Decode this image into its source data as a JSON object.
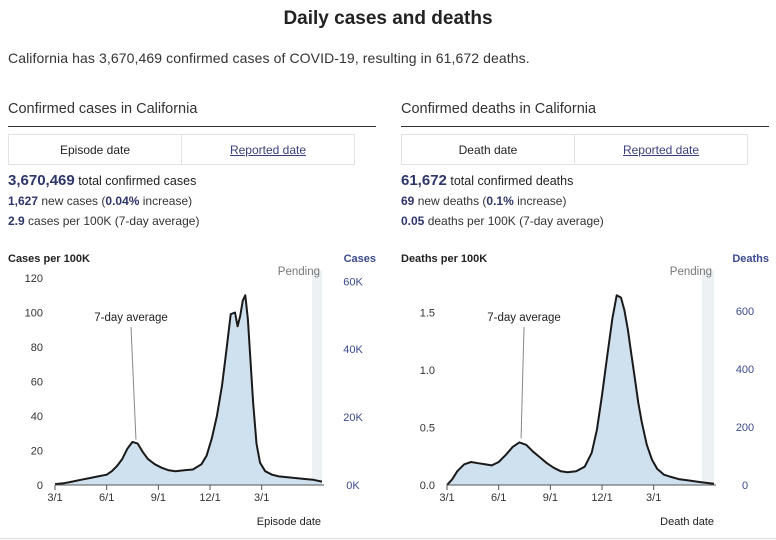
{
  "header": {
    "title": "Daily cases and deaths",
    "summary": "California has 3,670,469 confirmed cases of COVID-19, resulting in 61,672 deaths."
  },
  "panels": {
    "cases": {
      "title": "Confirmed cases in California",
      "tab_active": "Episode date",
      "tab_link": "Reported date",
      "total_value": "3,670,469",
      "total_label": " total confirmed cases",
      "new_value": "1,627",
      "new_label": " new cases (",
      "new_pct": "0.04%",
      "new_tail": " increase)",
      "rate_value": "2.9",
      "rate_label": " cases per 100K (7-day average)"
    },
    "deaths": {
      "title": "Confirmed deaths in California",
      "tab_active": "Death date",
      "tab_link": "Reported date",
      "total_value": "61,672",
      "total_label": " total confirmed deaths",
      "new_value": "69",
      "new_label": " new deaths (",
      "new_pct": "0.1%",
      "new_tail": " increase)",
      "rate_value": "0.05",
      "rate_label": " deaths per 100K (7-day average)"
    }
  },
  "colors": {
    "line": "#1a1a1a",
    "area": "#cfe0ee",
    "axis_right": "#3b4a8c",
    "pending": "#eef1f4"
  },
  "chart_data": [
    {
      "type": "area",
      "ylabel_left": "Cases per 100K",
      "ylabel_right": "Cases",
      "xlabel": "Episode date",
      "pending_label": "Pending",
      "annotation": "7-day average",
      "ylim": [
        0,
        120
      ],
      "yticks_left": [
        0,
        20,
        40,
        60,
        80,
        100,
        120
      ],
      "yticks_right_labels": [
        "0K",
        "20K",
        "40K",
        "60K"
      ],
      "yticks_right_values": [
        0,
        20000,
        40000,
        60000
      ],
      "right_per_left": 508,
      "x_ticks": [
        "3/1",
        "6/1",
        "9/1",
        "12/1",
        "3/1"
      ],
      "x_tick_months": [
        0,
        3,
        6,
        9,
        12
      ],
      "x_range_months": [
        0,
        15.5
      ],
      "series": [
        {
          "months": [
            0,
            0.5,
            1.0,
            1.5,
            2.0,
            2.5,
            3.0,
            3.3,
            3.6,
            3.9,
            4.2,
            4.5,
            4.8,
            5.1,
            5.4,
            5.8,
            6.2,
            6.6,
            7.0,
            7.5,
            8.0,
            8.5,
            8.8,
            9.1,
            9.4,
            9.7,
            9.95,
            10.2,
            10.45,
            10.6,
            10.75,
            10.9,
            11.05,
            11.2,
            11.35,
            11.5,
            11.7,
            11.9,
            12.2,
            12.6,
            13.0,
            13.5,
            14.0,
            14.5,
            15.0,
            15.5
          ],
          "values": [
            0.5,
            1,
            2,
            3,
            4,
            5,
            6,
            8,
            11,
            15,
            21,
            25,
            24,
            19,
            15,
            12,
            10,
            8.5,
            8,
            8.5,
            9,
            12,
            17,
            27,
            40,
            58,
            78,
            99,
            100,
            92,
            98,
            107,
            110,
            96,
            72,
            48,
            24,
            13,
            8,
            6,
            5,
            4.5,
            4,
            3.5,
            3,
            2
          ]
        }
      ]
    },
    {
      "type": "area",
      "ylabel_left": "Deaths per 100K",
      "ylabel_right": "Deaths",
      "xlabel": "Death date",
      "pending_label": "Pending",
      "annotation": "7-day average",
      "ylim": [
        0,
        1.8
      ],
      "yticks_left": [
        0.0,
        0.5,
        1.0,
        1.5
      ],
      "yticks_left_labels": [
        "0.0",
        "0.5",
        "1.0",
        "1.5"
      ],
      "yticks_right_labels": [
        "0",
        "200",
        "400",
        "600"
      ],
      "yticks_right_values": [
        0,
        200,
        400,
        600
      ],
      "right_per_left": 396,
      "x_ticks": [
        "3/1",
        "6/1",
        "9/1",
        "12/1",
        "3/1"
      ],
      "x_tick_months": [
        0,
        3,
        6,
        9,
        12
      ],
      "x_range_months": [
        0,
        15.5
      ],
      "series": [
        {
          "months": [
            0,
            0.3,
            0.6,
            1.0,
            1.4,
            1.8,
            2.2,
            2.6,
            3.0,
            3.4,
            3.8,
            4.2,
            4.6,
            5.0,
            5.4,
            5.8,
            6.2,
            6.6,
            7.0,
            7.5,
            8.0,
            8.4,
            8.7,
            9.0,
            9.3,
            9.6,
            9.85,
            10.1,
            10.3,
            10.5,
            10.7,
            10.9,
            11.1,
            11.3,
            11.6,
            11.9,
            12.2,
            12.6,
            13.0,
            13.5,
            14.0,
            14.5,
            15.0,
            15.5
          ],
          "values": [
            0,
            0.05,
            0.12,
            0.18,
            0.2,
            0.19,
            0.18,
            0.17,
            0.2,
            0.26,
            0.33,
            0.37,
            0.35,
            0.29,
            0.24,
            0.19,
            0.15,
            0.12,
            0.11,
            0.12,
            0.16,
            0.28,
            0.48,
            0.78,
            1.12,
            1.45,
            1.65,
            1.63,
            1.52,
            1.35,
            1.14,
            0.93,
            0.72,
            0.55,
            0.35,
            0.22,
            0.14,
            0.09,
            0.07,
            0.05,
            0.04,
            0.03,
            0.02,
            0.01
          ]
        }
      ]
    }
  ]
}
